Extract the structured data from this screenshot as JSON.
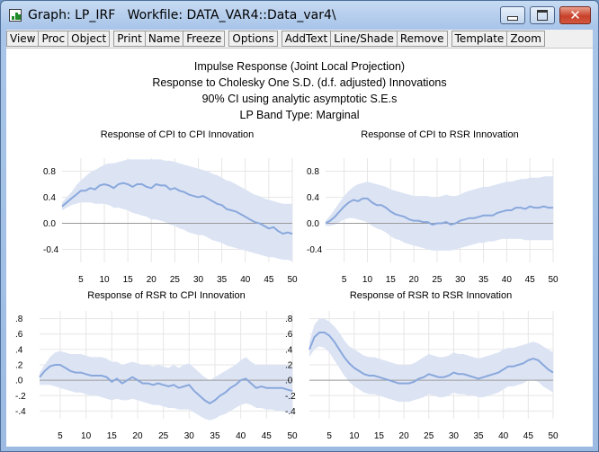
{
  "window": {
    "title": "Graph: LP_IRF   Workfile: DATA_VAR4::Data_var4\\",
    "controls": {
      "minimize": "minimize",
      "maximize": "maximize",
      "close": "✕"
    },
    "icon": "graph-icon"
  },
  "toolbar": {
    "items": [
      {
        "label": "View"
      },
      {
        "label": "Proc"
      },
      {
        "label": "Object"
      },
      {
        "label": "Print"
      },
      {
        "label": "Name"
      },
      {
        "label": "Freeze"
      },
      {
        "label": "Options"
      },
      {
        "label": "AddText"
      },
      {
        "label": "Line/Shade"
      },
      {
        "label": "Remove"
      },
      {
        "label": "Template"
      },
      {
        "label": "Zoom"
      }
    ]
  },
  "graph_header": {
    "line1": "Impulse Response (Joint Local Projection)",
    "line2": "Response to Cholesky One S.D. (d.f. adjusted) Innovations",
    "line3": "90% CI using analytic asymptotic S.E.s",
    "line4": "LP Band Type: Marginal"
  },
  "colors": {
    "line": "#8aa8dc",
    "band": "#dce4f4",
    "zero": "#9a9a9a",
    "grid": "#e6e6e6"
  },
  "chart_data": [
    {
      "type": "area",
      "title": "Response of CPI to CPI Innovation",
      "x": [
        1,
        2,
        3,
        4,
        5,
        6,
        7,
        8,
        9,
        10,
        11,
        12,
        13,
        14,
        15,
        16,
        17,
        18,
        19,
        20,
        21,
        22,
        23,
        24,
        25,
        26,
        27,
        28,
        29,
        30,
        31,
        32,
        33,
        34,
        35,
        36,
        37,
        38,
        39,
        40,
        41,
        42,
        43,
        44,
        45,
        46,
        47,
        48,
        49,
        50
      ],
      "xticks": [
        "5",
        "10",
        "15",
        "20",
        "25",
        "30",
        "35",
        "40",
        "45",
        "50"
      ],
      "xtick_values": [
        5,
        10,
        15,
        20,
        25,
        30,
        35,
        40,
        45,
        50
      ],
      "yticks": [
        "0.8",
        "0.4",
        "0.0",
        "-0.4"
      ],
      "ytick_values": [
        0.8,
        0.4,
        0.0,
        -0.4
      ],
      "ylim": [
        -0.6,
        1.0
      ],
      "series": [
        {
          "role": "response",
          "values": [
            0.26,
            0.32,
            0.38,
            0.44,
            0.5,
            0.5,
            0.54,
            0.52,
            0.58,
            0.6,
            0.58,
            0.54,
            0.6,
            0.62,
            0.6,
            0.56,
            0.6,
            0.6,
            0.56,
            0.54,
            0.6,
            0.58,
            0.58,
            0.52,
            0.54,
            0.5,
            0.48,
            0.44,
            0.42,
            0.4,
            0.42,
            0.38,
            0.34,
            0.3,
            0.28,
            0.22,
            0.2,
            0.18,
            0.14,
            0.1,
            0.06,
            0.02,
            0.0,
            -0.04,
            -0.08,
            -0.06,
            -0.12,
            -0.16,
            -0.14,
            -0.16
          ]
        },
        {
          "role": "lower_bound",
          "values": [
            0.2,
            0.24,
            0.28,
            0.3,
            0.32,
            0.32,
            0.32,
            0.3,
            0.3,
            0.3,
            0.28,
            0.24,
            0.24,
            0.22,
            0.2,
            0.16,
            0.14,
            0.12,
            0.1,
            0.06,
            0.06,
            0.04,
            0.02,
            -0.02,
            -0.04,
            -0.08,
            -0.1,
            -0.14,
            -0.16,
            -0.18,
            -0.18,
            -0.22,
            -0.26,
            -0.28,
            -0.3,
            -0.34,
            -0.36,
            -0.38,
            -0.4,
            -0.42,
            -0.44,
            -0.46,
            -0.48,
            -0.5,
            -0.52,
            -0.52,
            -0.54,
            -0.56,
            -0.56,
            -0.58
          ]
        },
        {
          "role": "upper_bound",
          "values": [
            0.32,
            0.4,
            0.48,
            0.58,
            0.66,
            0.72,
            0.78,
            0.82,
            0.86,
            0.9,
            0.92,
            0.92,
            0.94,
            0.96,
            0.98,
            0.98,
            0.98,
            0.98,
            0.98,
            0.98,
            0.98,
            0.98,
            0.96,
            0.96,
            0.94,
            0.92,
            0.9,
            0.88,
            0.86,
            0.84,
            0.82,
            0.8,
            0.76,
            0.74,
            0.7,
            0.66,
            0.64,
            0.6,
            0.56,
            0.52,
            0.48,
            0.44,
            0.42,
            0.38,
            0.36,
            0.34,
            0.32,
            0.3,
            0.3,
            0.3
          ]
        }
      ]
    },
    {
      "type": "area",
      "title": "Response of CPI to RSR Innovation",
      "x": [
        1,
        2,
        3,
        4,
        5,
        6,
        7,
        8,
        9,
        10,
        11,
        12,
        13,
        14,
        15,
        16,
        17,
        18,
        19,
        20,
        21,
        22,
        23,
        24,
        25,
        26,
        27,
        28,
        29,
        30,
        31,
        32,
        33,
        34,
        35,
        36,
        37,
        38,
        39,
        40,
        41,
        42,
        43,
        44,
        45,
        46,
        47,
        48,
        49,
        50
      ],
      "xticks": [
        "5",
        "10",
        "15",
        "20",
        "25",
        "30",
        "35",
        "40",
        "45",
        "50"
      ],
      "xtick_values": [
        5,
        10,
        15,
        20,
        25,
        30,
        35,
        40,
        45,
        50
      ],
      "yticks": [
        "0.8",
        "0.4",
        "0.0",
        "-0.4"
      ],
      "ytick_values": [
        0.8,
        0.4,
        0.0,
        -0.4
      ],
      "ylim": [
        -0.6,
        1.0
      ],
      "series": [
        {
          "role": "response",
          "values": [
            0.0,
            0.04,
            0.1,
            0.18,
            0.26,
            0.32,
            0.36,
            0.34,
            0.38,
            0.38,
            0.32,
            0.28,
            0.28,
            0.24,
            0.18,
            0.14,
            0.12,
            0.1,
            0.06,
            0.04,
            0.04,
            0.02,
            0.02,
            -0.02,
            0.0,
            0.0,
            0.02,
            -0.02,
            0.0,
            0.04,
            0.06,
            0.08,
            0.08,
            0.1,
            0.12,
            0.12,
            0.12,
            0.16,
            0.18,
            0.2,
            0.2,
            0.24,
            0.24,
            0.22,
            0.26,
            0.24,
            0.24,
            0.26,
            0.24,
            0.24
          ]
        },
        {
          "role": "lower_bound",
          "values": [
            -0.04,
            -0.04,
            -0.02,
            0.02,
            0.06,
            0.08,
            0.08,
            0.06,
            0.04,
            0.02,
            -0.04,
            -0.08,
            -0.1,
            -0.14,
            -0.2,
            -0.24,
            -0.26,
            -0.3,
            -0.32,
            -0.34,
            -0.36,
            -0.38,
            -0.4,
            -0.42,
            -0.42,
            -0.42,
            -0.42,
            -0.42,
            -0.4,
            -0.38,
            -0.36,
            -0.34,
            -0.32,
            -0.3,
            -0.3,
            -0.28,
            -0.28,
            -0.26,
            -0.24,
            -0.24,
            -0.24,
            -0.24,
            -0.24,
            -0.26,
            -0.26,
            -0.26,
            -0.26,
            -0.26,
            -0.26,
            -0.26
          ]
        },
        {
          "role": "upper_bound",
          "values": [
            0.04,
            0.12,
            0.22,
            0.32,
            0.42,
            0.5,
            0.56,
            0.6,
            0.62,
            0.64,
            0.62,
            0.6,
            0.58,
            0.56,
            0.52,
            0.5,
            0.48,
            0.46,
            0.44,
            0.42,
            0.42,
            0.42,
            0.42,
            0.4,
            0.4,
            0.42,
            0.44,
            0.42,
            0.42,
            0.44,
            0.48,
            0.5,
            0.52,
            0.54,
            0.56,
            0.56,
            0.58,
            0.6,
            0.62,
            0.64,
            0.64,
            0.66,
            0.68,
            0.68,
            0.7,
            0.7,
            0.7,
            0.72,
            0.72,
            0.72
          ]
        }
      ]
    },
    {
      "type": "area",
      "title": "Response of RSR to CPI Innovation",
      "x": [
        1,
        2,
        3,
        4,
        5,
        6,
        7,
        8,
        9,
        10,
        11,
        12,
        13,
        14,
        15,
        16,
        17,
        18,
        19,
        20,
        21,
        22,
        23,
        24,
        25,
        26,
        27,
        28,
        29,
        30,
        31,
        32,
        33,
        34,
        35,
        36,
        37,
        38,
        39,
        40,
        41,
        42,
        43,
        44,
        45,
        46,
        47,
        48,
        49,
        50
      ],
      "xticks": [
        "5",
        "10",
        "15",
        "20",
        "25",
        "30",
        "35",
        "40",
        "45",
        "50"
      ],
      "xtick_values": [
        5,
        10,
        15,
        20,
        25,
        30,
        35,
        40,
        45,
        50
      ],
      "yticks": [
        ".8",
        ".6",
        ".4",
        ".2",
        ".0",
        "-.2",
        "-.4"
      ],
      "ytick_values": [
        0.8,
        0.6,
        0.4,
        0.2,
        0.0,
        -0.2,
        -0.4
      ],
      "ylim": [
        -0.5,
        0.9
      ],
      "series": [
        {
          "role": "response",
          "values": [
            0.04,
            0.12,
            0.18,
            0.2,
            0.2,
            0.16,
            0.12,
            0.1,
            0.1,
            0.08,
            0.06,
            0.06,
            0.06,
            0.04,
            -0.02,
            0.02,
            -0.04,
            0.0,
            0.04,
            0.0,
            -0.04,
            -0.04,
            -0.06,
            -0.04,
            -0.06,
            -0.08,
            -0.06,
            -0.1,
            -0.08,
            -0.06,
            -0.14,
            -0.2,
            -0.26,
            -0.3,
            -0.26,
            -0.2,
            -0.16,
            -0.1,
            -0.06,
            0.0,
            0.02,
            -0.04,
            -0.1,
            -0.08,
            -0.1,
            -0.1,
            -0.1,
            -0.1,
            -0.12,
            -0.14
          ]
        },
        {
          "role": "lower_bound",
          "values": [
            -0.06,
            -0.06,
            -0.06,
            -0.08,
            -0.1,
            -0.12,
            -0.14,
            -0.16,
            -0.16,
            -0.18,
            -0.2,
            -0.2,
            -0.22,
            -0.24,
            -0.26,
            -0.24,
            -0.26,
            -0.26,
            -0.24,
            -0.26,
            -0.28,
            -0.3,
            -0.32,
            -0.32,
            -0.34,
            -0.36,
            -0.36,
            -0.38,
            -0.38,
            -0.38,
            -0.42,
            -0.46,
            -0.5,
            -0.52,
            -0.5,
            -0.46,
            -0.44,
            -0.4,
            -0.36,
            -0.32,
            -0.3,
            -0.32,
            -0.36,
            -0.36,
            -0.38,
            -0.38,
            -0.4,
            -0.4,
            -0.42,
            -0.44
          ]
        },
        {
          "role": "upper_bound",
          "values": [
            0.1,
            0.2,
            0.3,
            0.36,
            0.38,
            0.36,
            0.34,
            0.34,
            0.34,
            0.32,
            0.3,
            0.3,
            0.3,
            0.28,
            0.24,
            0.24,
            0.2,
            0.22,
            0.24,
            0.22,
            0.2,
            0.2,
            0.18,
            0.2,
            0.18,
            0.16,
            0.2,
            0.16,
            0.2,
            0.22,
            0.16,
            0.1,
            0.04,
            0.0,
            0.04,
            0.08,
            0.12,
            0.16,
            0.2,
            0.26,
            0.3,
            0.24,
            0.2,
            0.2,
            0.2,
            0.2,
            0.2,
            0.2,
            0.2,
            0.18
          ]
        }
      ]
    },
    {
      "type": "area",
      "title": "Response of RSR to RSR Innovation",
      "x": [
        1,
        2,
        3,
        4,
        5,
        6,
        7,
        8,
        9,
        10,
        11,
        12,
        13,
        14,
        15,
        16,
        17,
        18,
        19,
        20,
        21,
        22,
        23,
        24,
        25,
        26,
        27,
        28,
        29,
        30,
        31,
        32,
        33,
        34,
        35,
        36,
        37,
        38,
        39,
        40,
        41,
        42,
        43,
        44,
        45,
        46,
        47,
        48,
        49,
        50
      ],
      "xticks": [
        "5",
        "10",
        "15",
        "20",
        "25",
        "30",
        "35",
        "40",
        "45",
        "50"
      ],
      "xtick_values": [
        5,
        10,
        15,
        20,
        25,
        30,
        35,
        40,
        45,
        50
      ],
      "yticks": [
        ".8",
        ".6",
        ".4",
        ".2",
        ".0",
        "-.2",
        "-.4"
      ],
      "ytick_values": [
        0.8,
        0.6,
        0.4,
        0.2,
        0.0,
        -0.2,
        -0.4
      ],
      "ylim": [
        -0.5,
        0.9
      ],
      "series": [
        {
          "role": "response",
          "values": [
            0.4,
            0.56,
            0.62,
            0.62,
            0.58,
            0.5,
            0.4,
            0.3,
            0.22,
            0.16,
            0.12,
            0.08,
            0.06,
            0.06,
            0.04,
            0.02,
            0.0,
            -0.02,
            -0.04,
            -0.04,
            -0.04,
            -0.02,
            0.02,
            0.04,
            0.08,
            0.06,
            0.04,
            0.04,
            0.06,
            0.1,
            0.08,
            0.08,
            0.06,
            0.04,
            0.02,
            0.04,
            0.06,
            0.08,
            0.1,
            0.14,
            0.18,
            0.18,
            0.2,
            0.22,
            0.26,
            0.28,
            0.26,
            0.2,
            0.14,
            0.1
          ]
        },
        {
          "role": "lower_bound",
          "values": [
            0.3,
            0.4,
            0.44,
            0.42,
            0.36,
            0.26,
            0.16,
            0.06,
            -0.02,
            -0.08,
            -0.12,
            -0.16,
            -0.18,
            -0.18,
            -0.2,
            -0.22,
            -0.24,
            -0.26,
            -0.28,
            -0.28,
            -0.28,
            -0.26,
            -0.24,
            -0.22,
            -0.18,
            -0.2,
            -0.22,
            -0.22,
            -0.2,
            -0.16,
            -0.18,
            -0.18,
            -0.2,
            -0.2,
            -0.22,
            -0.22,
            -0.2,
            -0.18,
            -0.16,
            -0.12,
            -0.08,
            -0.08,
            -0.06,
            -0.04,
            0.0,
            0.0,
            -0.02,
            -0.08,
            -0.12,
            -0.16
          ]
        },
        {
          "role": "upper_bound",
          "values": [
            0.5,
            0.72,
            0.8,
            0.8,
            0.76,
            0.7,
            0.62,
            0.52,
            0.44,
            0.4,
            0.36,
            0.32,
            0.3,
            0.3,
            0.28,
            0.26,
            0.24,
            0.22,
            0.2,
            0.2,
            0.2,
            0.22,
            0.26,
            0.3,
            0.34,
            0.32,
            0.3,
            0.3,
            0.32,
            0.36,
            0.34,
            0.34,
            0.32,
            0.3,
            0.28,
            0.3,
            0.32,
            0.34,
            0.36,
            0.4,
            0.42,
            0.42,
            0.44,
            0.46,
            0.48,
            0.5,
            0.48,
            0.44,
            0.4,
            0.36
          ]
        }
      ]
    }
  ]
}
